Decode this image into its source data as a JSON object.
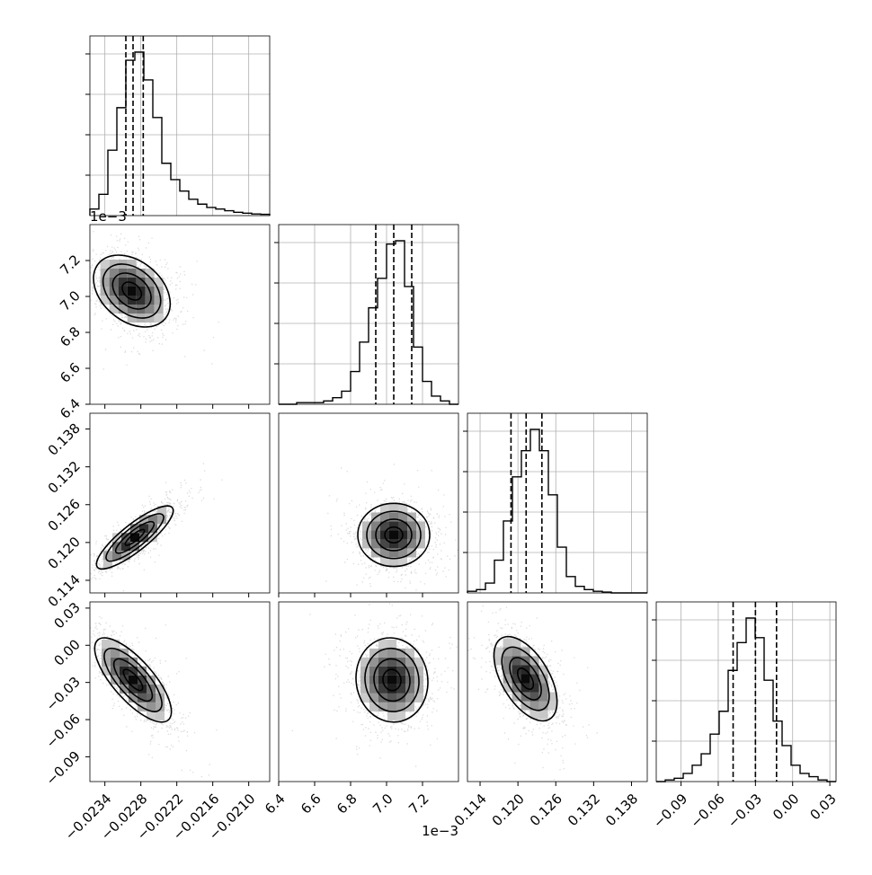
{
  "chart_data": {
    "type": "corner",
    "offset_labels": [
      "1e−3",
      "1e−3"
    ],
    "parameters": [
      {
        "range": [
          -0.02365,
          -0.02065
        ],
        "ticks": [
          -0.0234,
          -0.0228,
          -0.0222,
          -0.0216,
          -0.021
        ],
        "tick_labels": [
          "−0.0234",
          "−0.0228",
          "−0.0222",
          "−0.0216",
          "−0.0210"
        ],
        "quantiles": [
          -0.02305,
          -0.02293,
          -0.02276
        ],
        "hist": [
          0.04,
          0.13,
          0.4,
          0.66,
          0.95,
          1.0,
          0.83,
          0.6,
          0.32,
          0.22,
          0.15,
          0.1,
          0.07,
          0.05,
          0.04,
          0.03,
          0.02,
          0.015,
          0.01,
          0.008
        ]
      },
      {
        "range": [
          6.4,
          7.4
        ],
        "ticks": [
          6.4,
          6.6,
          6.8,
          7.0,
          7.2
        ],
        "tick_labels": [
          "6.4",
          "6.6",
          "6.8",
          "7.0",
          "7.2"
        ],
        "quantiles": [
          6.94,
          7.04,
          7.14
        ],
        "hist": [
          0.0,
          0.0,
          0.01,
          0.01,
          0.01,
          0.02,
          0.04,
          0.08,
          0.2,
          0.38,
          0.59,
          0.77,
          0.98,
          1.0,
          0.72,
          0.35,
          0.14,
          0.05,
          0.02,
          0.0
        ]
      },
      {
        "range": [
          0.112,
          0.1405
        ],
        "ticks": [
          0.114,
          0.12,
          0.126,
          0.132,
          0.138
        ],
        "tick_labels": [
          "0.114",
          "0.120",
          "0.126",
          "0.132",
          "0.138"
        ],
        "quantiles": [
          0.1189,
          0.1213,
          0.1238
        ],
        "hist": [
          0.01,
          0.02,
          0.06,
          0.2,
          0.44,
          0.71,
          0.87,
          1.0,
          0.87,
          0.6,
          0.28,
          0.1,
          0.04,
          0.02,
          0.01,
          0.005,
          0.0,
          0.0,
          0.0,
          0.0
        ]
      },
      {
        "range": [
          -0.11,
          0.035
        ],
        "ticks": [
          -0.09,
          -0.06,
          -0.03,
          0.0,
          0.03
        ],
        "tick_labels": [
          "−0.09",
          "−0.06",
          "−0.03",
          "0.00",
          "0.03"
        ],
        "quantiles": [
          -0.048,
          -0.03,
          -0.013
        ],
        "hist": [
          0.0,
          0.01,
          0.02,
          0.05,
          0.1,
          0.17,
          0.29,
          0.43,
          0.68,
          0.85,
          1.0,
          0.88,
          0.62,
          0.37,
          0.22,
          0.1,
          0.05,
          0.03,
          0.01,
          0.0
        ]
      }
    ],
    "pairs": [
      {
        "row": 1,
        "col": 0,
        "center": [
          -0.02295,
          7.03
        ],
        "sigma": [
          0.00032,
          0.1
        ],
        "corr": -0.35
      },
      {
        "row": 2,
        "col": 0,
        "center": [
          -0.0229,
          0.1208
        ],
        "sigma": [
          0.00032,
          0.0025
        ],
        "corr": 0.85
      },
      {
        "row": 2,
        "col": 1,
        "center": [
          7.04,
          0.1212
        ],
        "sigma": [
          0.1,
          0.0025
        ],
        "corr": 0.0
      },
      {
        "row": 3,
        "col": 0,
        "center": [
          -0.02293,
          -0.028
        ],
        "sigma": [
          0.00032,
          0.017
        ],
        "corr": -0.75
      },
      {
        "row": 3,
        "col": 1,
        "center": [
          7.03,
          -0.028
        ],
        "sigma": [
          0.1,
          0.017
        ],
        "corr": -0.05
      },
      {
        "row": 3,
        "col": 2,
        "center": [
          0.1212,
          -0.027
        ],
        "sigma": [
          0.0025,
          0.017
        ],
        "corr": -0.55
      }
    ],
    "grid": true,
    "contour_levels": [
      0.5,
      1.0,
      1.5,
      2.0
    ]
  }
}
